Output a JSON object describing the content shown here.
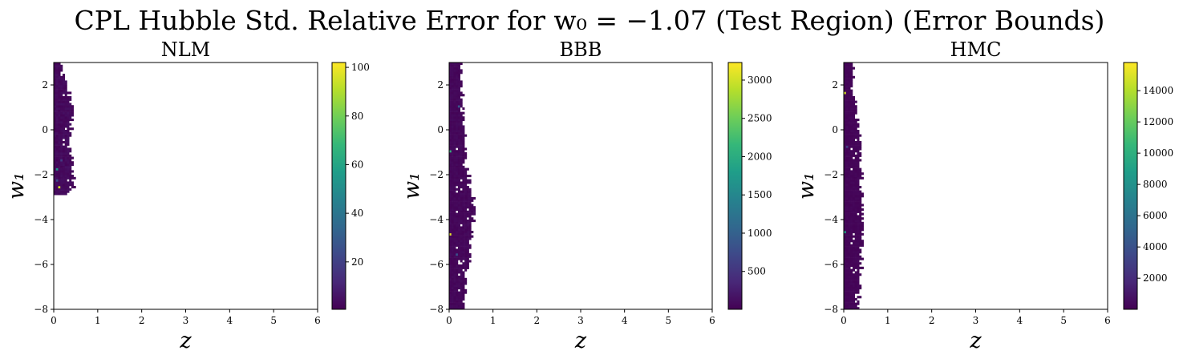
{
  "figure": {
    "title": "CPL Hubble Std. Relative Error for w₀ = −1.07 (Test Region) (Error Bounds)"
  },
  "colors": {
    "viridis": [
      "#440154",
      "#482878",
      "#3e4989",
      "#31688e",
      "#26828e",
      "#1f9e89",
      "#35b779",
      "#6ece58",
      "#b5de2b",
      "#fde725"
    ],
    "background": "#ffffff"
  },
  "chart_data": [
    {
      "type": "heatmap",
      "title": "NLM",
      "xlabel": "z",
      "ylabel": "w₁",
      "xlim": [
        0,
        6
      ],
      "ylim": [
        -8,
        3
      ],
      "xticks": [
        0,
        1,
        2,
        3,
        4,
        5,
        6
      ],
      "yticks": [
        -8,
        -6,
        -4,
        -2,
        0,
        2
      ],
      "colorbar": {
        "min": 0.5,
        "max": 102,
        "ticks": [
          20,
          40,
          60,
          80,
          100
        ]
      },
      "cells": {
        "dx": 0.05,
        "dy": 0.1,
        "band": [
          [
            -2.9,
            0.25
          ],
          [
            -2.8,
            0.35
          ],
          [
            -2.6,
            0.45
          ],
          [
            -0.5,
            0.35
          ],
          [
            1.0,
            0.4
          ],
          [
            2.2,
            0.25
          ],
          [
            2.55,
            0.15
          ],
          [
            3.0,
            0.15
          ]
        ],
        "base_value": 3,
        "hot": [
          {
            "z": 0.07,
            "w1": -1.8,
            "value": 55
          },
          {
            "z": 0.12,
            "w1": -2.6,
            "value": 95
          },
          {
            "z": 0.07,
            "w1": -2.3,
            "value": 25
          },
          {
            "z": 0.17,
            "w1": -1.4,
            "value": 18
          }
        ]
      }
    },
    {
      "type": "heatmap",
      "title": "BBB",
      "xlabel": "z",
      "ylabel": "w₁",
      "xlim": [
        0,
        6
      ],
      "ylim": [
        -8,
        3
      ],
      "xticks": [
        0,
        1,
        2,
        3,
        4,
        5,
        6
      ],
      "yticks": [
        -8,
        -6,
        -4,
        -2,
        0,
        2
      ],
      "colorbar": {
        "min": 5,
        "max": 3230,
        "ticks": [
          500,
          1000,
          1500,
          2000,
          2500,
          3000
        ]
      },
      "cells": {
        "dx": 0.05,
        "dy": 0.1,
        "band": [
          [
            -8.0,
            0.3
          ],
          [
            -7.0,
            0.35
          ],
          [
            -5.5,
            0.45
          ],
          [
            -3.5,
            0.55
          ],
          [
            -1.5,
            0.35
          ],
          [
            0.5,
            0.3
          ],
          [
            2.0,
            0.25
          ],
          [
            3.0,
            0.25
          ]
        ],
        "base_value": 60,
        "hot": [
          {
            "z": 0.02,
            "w1": -4.75,
            "value": 3100
          },
          {
            "z": 0.02,
            "w1": -1.0,
            "value": 2100
          },
          {
            "z": 0.22,
            "w1": 1.0,
            "value": 900
          },
          {
            "z": 0.17,
            "w1": -5.6,
            "value": 800
          }
        ]
      }
    },
    {
      "type": "heatmap",
      "title": "HMC",
      "xlabel": "z",
      "ylabel": "w₁",
      "xlim": [
        0,
        6
      ],
      "ylim": [
        -8,
        3
      ],
      "xticks": [
        0,
        1,
        2,
        3,
        4,
        5,
        6
      ],
      "yticks": [
        -8,
        -6,
        -4,
        -2,
        0,
        2
      ],
      "colorbar": {
        "min": 10,
        "max": 15800,
        "ticks": [
          2000,
          4000,
          6000,
          8000,
          10000,
          12000,
          14000
        ]
      },
      "cells": {
        "dx": 0.05,
        "dy": 0.1,
        "band": [
          [
            -8.0,
            0.3
          ],
          [
            -6.5,
            0.35
          ],
          [
            -5.0,
            0.4
          ],
          [
            -3.0,
            0.4
          ],
          [
            -1.0,
            0.35
          ],
          [
            1.0,
            0.25
          ],
          [
            2.0,
            0.2
          ],
          [
            3.0,
            0.2
          ]
        ],
        "base_value": 200,
        "hot": [
          {
            "z": 0.02,
            "w1": 1.6,
            "value": 15000
          },
          {
            "z": 0.02,
            "w1": -4.6,
            "value": 9000
          },
          {
            "z": 0.07,
            "w1": -0.8,
            "value": 3000
          }
        ]
      }
    }
  ]
}
